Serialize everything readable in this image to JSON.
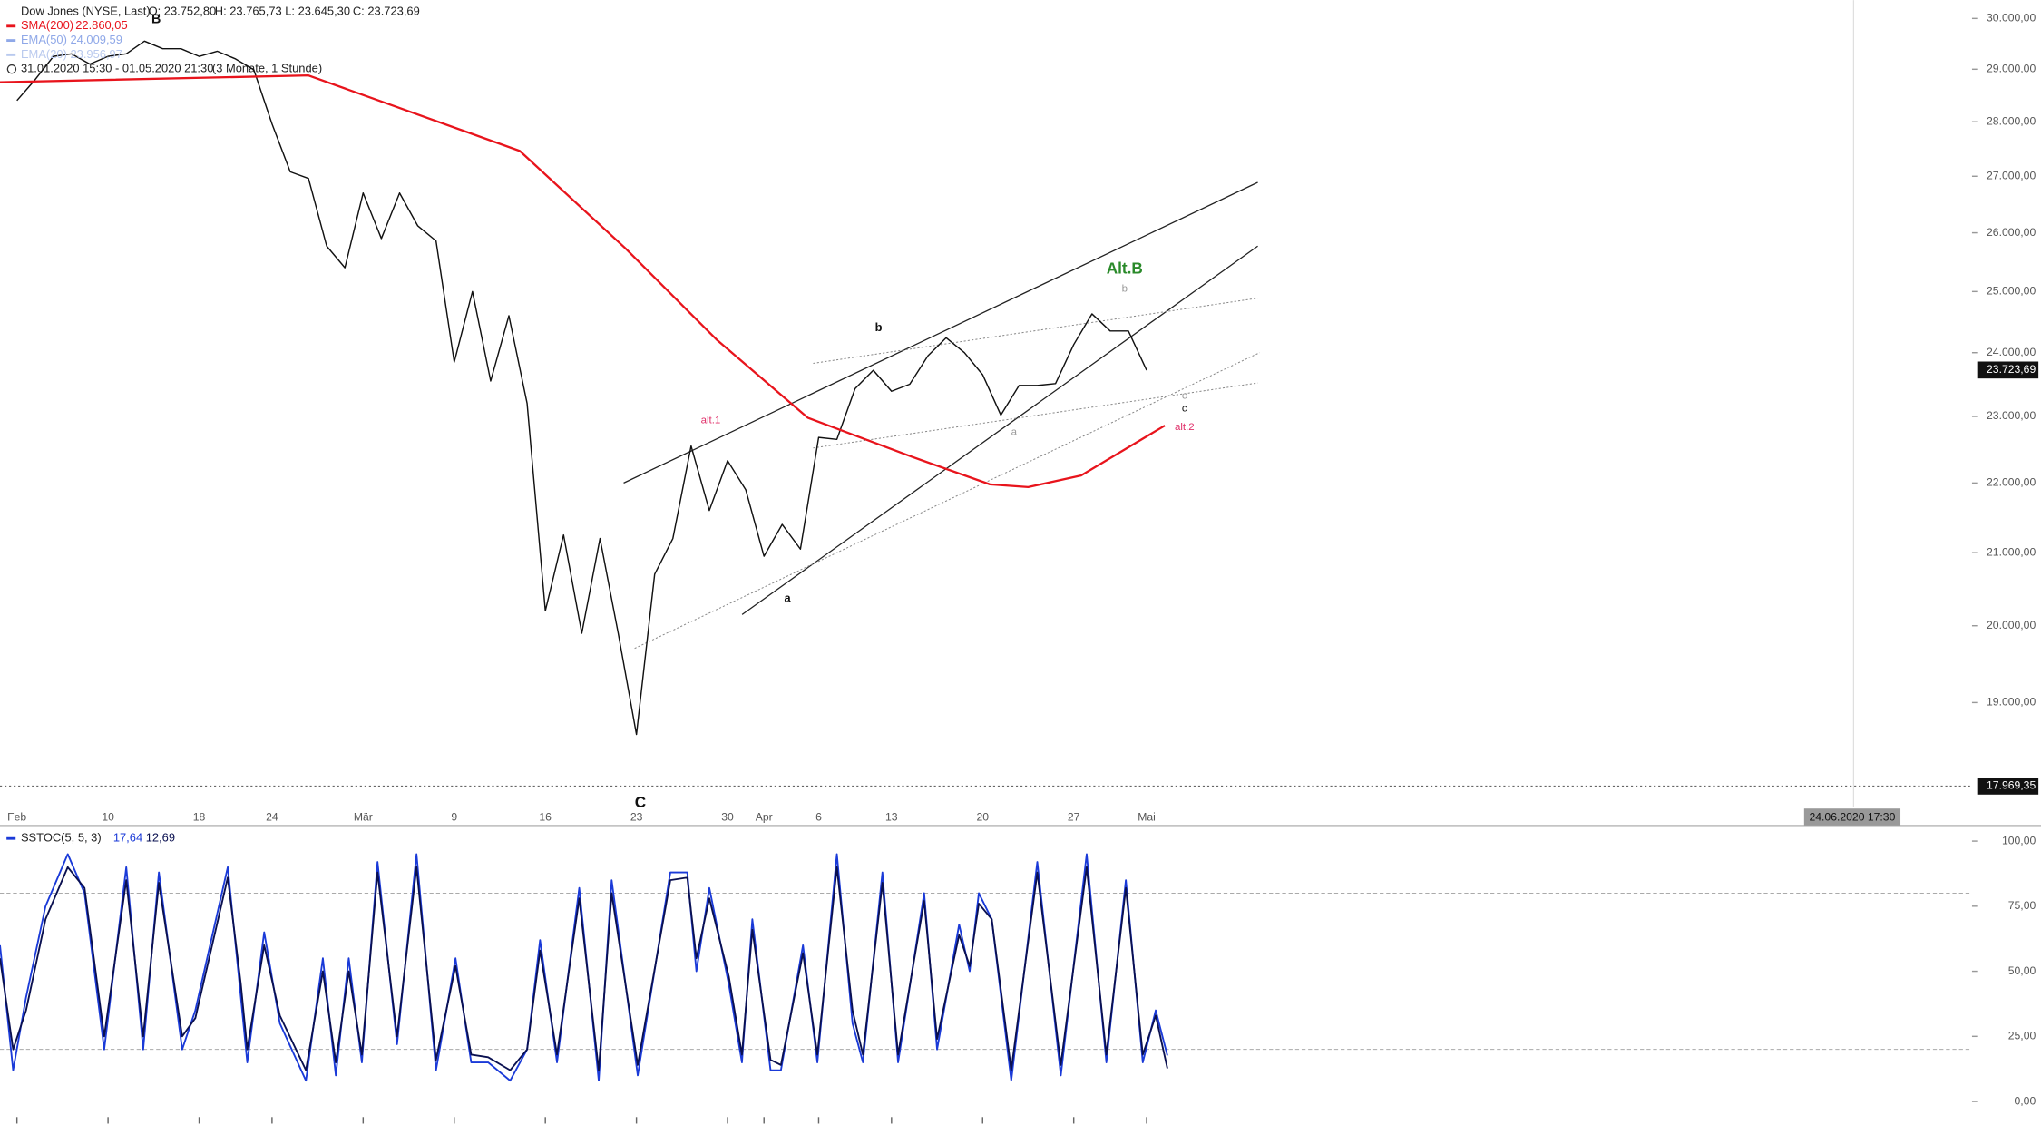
{
  "chart_data": [
    {
      "type": "line",
      "log_scale": true,
      "ohlc_labels": [
        "O: 23.752,80",
        "H: 23.765,73",
        "L: 23.645,30",
        "C: 23.723,69"
      ],
      "range_text": "31.01.2020 15:30 - 01.05.2020 21:30",
      "range_note": "(3 Monate, 1 Stunde)",
      "series": [
        {
          "name": "Dow Jones (NYSE, Last)",
          "color": "#111111",
          "x": [
            0,
            1,
            2,
            3,
            4,
            5,
            6,
            7,
            8,
            9,
            10,
            11,
            12,
            13,
            14,
            15,
            16,
            17,
            18,
            19,
            20,
            21,
            22,
            23,
            24,
            25,
            26,
            27,
            28,
            29,
            30,
            31,
            32,
            33,
            34,
            35,
            36,
            37,
            38,
            39,
            40,
            41,
            42,
            43,
            44,
            45,
            46,
            47,
            48,
            49,
            50,
            51,
            52,
            53,
            54,
            55,
            56,
            57,
            58,
            59,
            60,
            61,
            62
          ],
          "values": [
            28400,
            28800,
            29250,
            29300,
            29100,
            29250,
            29300,
            29550,
            29400,
            29400,
            29250,
            29350,
            29200,
            28990,
            27960,
            27080,
            26960,
            25770,
            25400,
            26700,
            25900,
            26700,
            26120,
            25860,
            23850,
            25000,
            23550,
            24600,
            23200,
            20200,
            21250,
            19900,
            21200,
            19900,
            18600,
            20700,
            21200,
            22550,
            21600,
            22330,
            21900,
            20950,
            21400,
            21050,
            22680,
            22650,
            23430,
            23720,
            23390,
            23500,
            23950,
            24240,
            24000,
            23650,
            23020,
            23480,
            23480,
            23510,
            24130,
            24630,
            24350,
            24350,
            23720
          ]
        },
        {
          "name": "SMA(200)",
          "color": "#e8141c",
          "last_label": "22.860,05",
          "x": [
            -0.93,
            16,
            20.5,
            27.6,
            33.4,
            38.4,
            43.4,
            49.1,
            53.4,
            55.5,
            58.4,
            63
          ],
          "values": [
            28750,
            28880,
            28320,
            27460,
            25730,
            24210,
            22980,
            22390,
            21980,
            21940,
            22110,
            22860
          ]
        },
        {
          "name": "EMA(50)",
          "color": "#8fa8e8",
          "last_label": "24.009,59"
        },
        {
          "name": "EMA(20)",
          "color": "#b9c9ee",
          "last_label": "23.956,97"
        }
      ],
      "trendlines": [
        {
          "x": [
            33.3,
            68.1
          ],
          "values": [
            22000,
            26890
          ],
          "style": "solid"
        },
        {
          "x": [
            39.8,
            68.1
          ],
          "values": [
            20150,
            25770
          ],
          "style": "solid"
        },
        {
          "x": [
            33.9,
            68.2
          ],
          "values": [
            19700,
            24000
          ],
          "style": "dotted"
        },
        {
          "x": [
            43.7,
            68.1
          ],
          "values": [
            23830,
            24890
          ],
          "style": "dotted"
        },
        {
          "x": [
            43.7,
            68.1
          ],
          "values": [
            22520,
            23520
          ],
          "style": "dotted"
        }
      ],
      "annotations": [
        {
          "text": "alt.1",
          "color": "#e0306a"
        },
        {
          "text": "b",
          "color": "#111111"
        },
        {
          "text": "a",
          "color": "#111111"
        },
        {
          "text": "Alt.B",
          "color": "#2a8a2a"
        },
        {
          "text": "b",
          "color": "#999999"
        },
        {
          "text": "a",
          "color": "#999999"
        },
        {
          "text": "c",
          "color": "#999999"
        },
        {
          "text": "c",
          "color": "#111111"
        },
        {
          "text": "alt.2",
          "color": "#e0306a"
        },
        {
          "text": "C",
          "color": "#111111"
        },
        {
          "text": "B",
          "color": "#111111"
        }
      ],
      "last_price": {
        "value": 23723.69,
        "label": "23.723,69"
      },
      "low_price": {
        "value": 17969.35,
        "label": "17.969,35"
      },
      "cursor_label": "24.06.2020 17:30",
      "ylim": [
        17950,
        30370
      ],
      "xlim": [
        -0.93,
        107.3
      ],
      "yticks": [
        {
          "value": 30000,
          "label": "30.000,00"
        },
        {
          "value": 29000,
          "label": "29.000,00"
        },
        {
          "value": 28000,
          "label": "28.000,00"
        },
        {
          "value": 27000,
          "label": "27.000,00"
        },
        {
          "value": 26000,
          "label": "26.000,00"
        },
        {
          "value": 25000,
          "label": "25.000,00"
        },
        {
          "value": 24000,
          "label": "24.000,00"
        },
        {
          "value": 23000,
          "label": "23.000,00"
        },
        {
          "value": 22000,
          "label": "22.000,00"
        },
        {
          "value": 21000,
          "label": "21.000,00"
        },
        {
          "value": 20000,
          "label": "20.000,00"
        },
        {
          "value": 19000,
          "label": "19.000,00"
        }
      ],
      "xticks": [
        {
          "value": 0,
          "label": "Feb"
        },
        {
          "value": 5,
          "label": "10"
        },
        {
          "value": 10,
          "label": "18"
        },
        {
          "value": 14,
          "label": "24"
        },
        {
          "value": 19,
          "label": "Mär"
        },
        {
          "value": 24,
          "label": "9"
        },
        {
          "value": 29,
          "label": "16"
        },
        {
          "value": 34,
          "label": "23"
        },
        {
          "value": 39,
          "label": "30"
        },
        {
          "value": 41,
          "label": "Apr"
        },
        {
          "value": 44,
          "label": "6"
        },
        {
          "value": 48,
          "label": "13"
        },
        {
          "value": 53,
          "label": "20"
        },
        {
          "value": 58,
          "label": "27"
        },
        {
          "value": 62,
          "label": "Mai"
        }
      ]
    },
    {
      "type": "line",
      "indicator": "SSTOC(5, 5, 3)",
      "x": [
        -0.93,
        -0.21,
        0.5,
        1.57,
        2.79,
        3.71,
        4.79,
        6,
        6.93,
        7.79,
        9.07,
        9.79,
        11.57,
        12.29,
        12.64,
        13.57,
        14.43,
        15.86,
        16.79,
        17.5,
        18.21,
        18.93,
        19.79,
        20.86,
        21.93,
        23,
        24.07,
        24.93,
        25.86,
        27.07,
        28,
        28.71,
        29.64,
        30.86,
        31.93,
        32.64,
        34.07,
        35.86,
        36.79,
        37.29,
        38,
        39.07,
        39.79,
        40.36,
        41.36,
        41.93,
        43.14,
        43.93,
        45,
        45.86,
        46.43,
        47.5,
        48.36,
        49.79,
        50.5,
        51.71,
        52.29,
        52.79,
        53.5,
        54.57,
        56,
        57.29,
        58.71,
        59.79,
        60.86,
        61.79,
        62.5,
        63.14
      ],
      "series": [
        {
          "color": "#1a3ad8",
          "last_label": "17,64",
          "values": [
            60,
            12,
            40,
            75,
            95,
            80,
            20,
            90,
            20,
            88,
            20,
            35,
            90,
            40,
            15,
            65,
            30,
            8,
            55,
            10,
            55,
            15,
            92,
            22,
            95,
            12,
            55,
            15,
            15,
            8,
            20,
            62,
            15,
            82,
            8,
            85,
            10,
            88,
            88,
            50,
            82,
            45,
            15,
            70,
            12,
            12,
            60,
            15,
            95,
            30,
            15,
            88,
            15,
            80,
            20,
            68,
            50,
            80,
            70,
            8,
            92,
            10,
            95,
            15,
            85,
            15,
            35,
            17.64
          ]
        },
        {
          "color": "#0a1050",
          "last_label": "12,69",
          "values": [
            55,
            20,
            35,
            70,
            90,
            82,
            25,
            85,
            25,
            84,
            25,
            32,
            86,
            45,
            20,
            60,
            33,
            12,
            50,
            15,
            50,
            18,
            88,
            25,
            90,
            16,
            52,
            18,
            17,
            12,
            20,
            58,
            18,
            78,
            12,
            80,
            14,
            85,
            86,
            55,
            78,
            48,
            18,
            66,
            16,
            14,
            57,
            18,
            90,
            35,
            18,
            84,
            18,
            77,
            24,
            64,
            52,
            76,
            70,
            12,
            88,
            14,
            90,
            18,
            82,
            18,
            33,
            12.69
          ]
        }
      ],
      "levels": [
        80,
        20
      ],
      "ylim": [
        0,
        100
      ],
      "yticks": [
        {
          "value": 100,
          "label": "100,00"
        },
        {
          "value": 75,
          "label": "75,00"
        },
        {
          "value": 50,
          "label": "50,00"
        },
        {
          "value": 25,
          "label": "25,00"
        },
        {
          "value": 0,
          "label": "0,00"
        }
      ]
    }
  ]
}
